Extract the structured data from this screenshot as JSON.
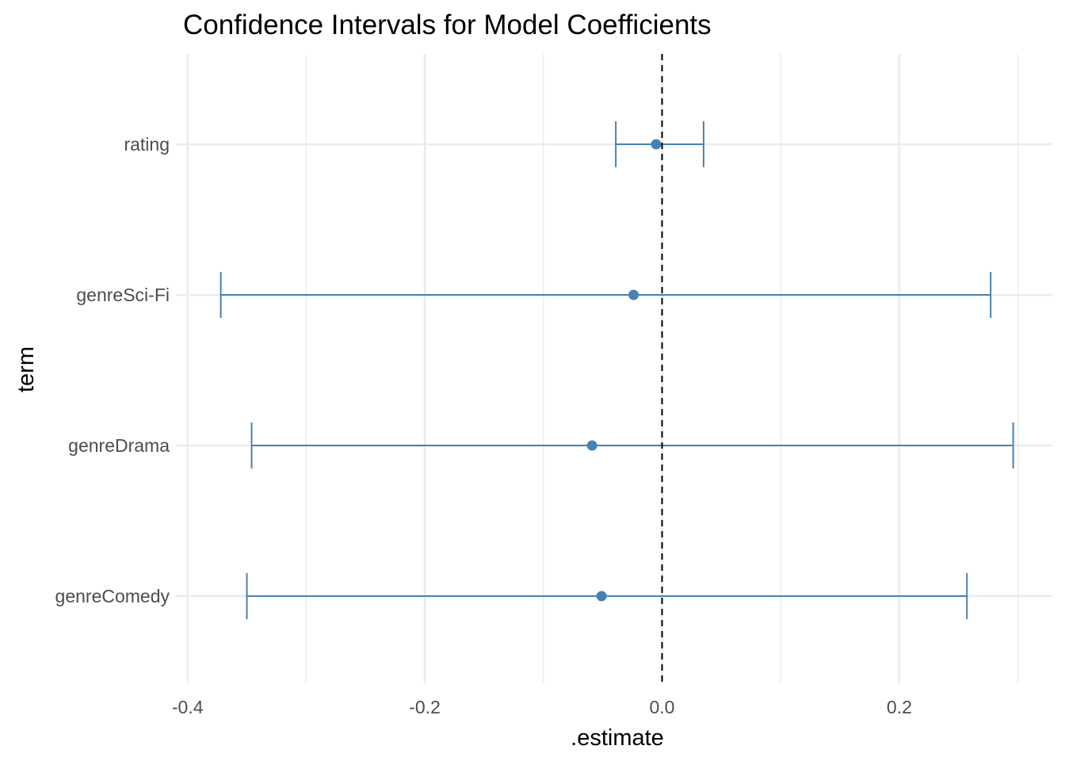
{
  "chart_data": {
    "type": "errorbar",
    "title": "Confidence Intervals for Model Coefficients",
    "xlabel": ".estimate",
    "ylabel": "term",
    "xlim": [
      -0.4,
      0.3
    ],
    "x_ticks": [
      -0.4,
      -0.2,
      0.0,
      0.2
    ],
    "x_tick_labels": [
      "-0.4",
      "-0.2",
      "0.0",
      "0.2"
    ],
    "categories": [
      "genreComedy",
      "genreDrama",
      "genreSci-Fi",
      "rating"
    ],
    "estimates": [
      -0.051,
      -0.059,
      -0.024,
      -0.005
    ],
    "lower": [
      -0.35,
      -0.346,
      -0.372,
      -0.039
    ],
    "upper": [
      0.257,
      0.296,
      0.277,
      0.035
    ],
    "reference_line": {
      "x": 0.0,
      "style": "dashed",
      "color": "#000000"
    },
    "colors": {
      "series": "#4682b4",
      "grid": "#ebebeb"
    },
    "grid": true,
    "legend": "none"
  }
}
